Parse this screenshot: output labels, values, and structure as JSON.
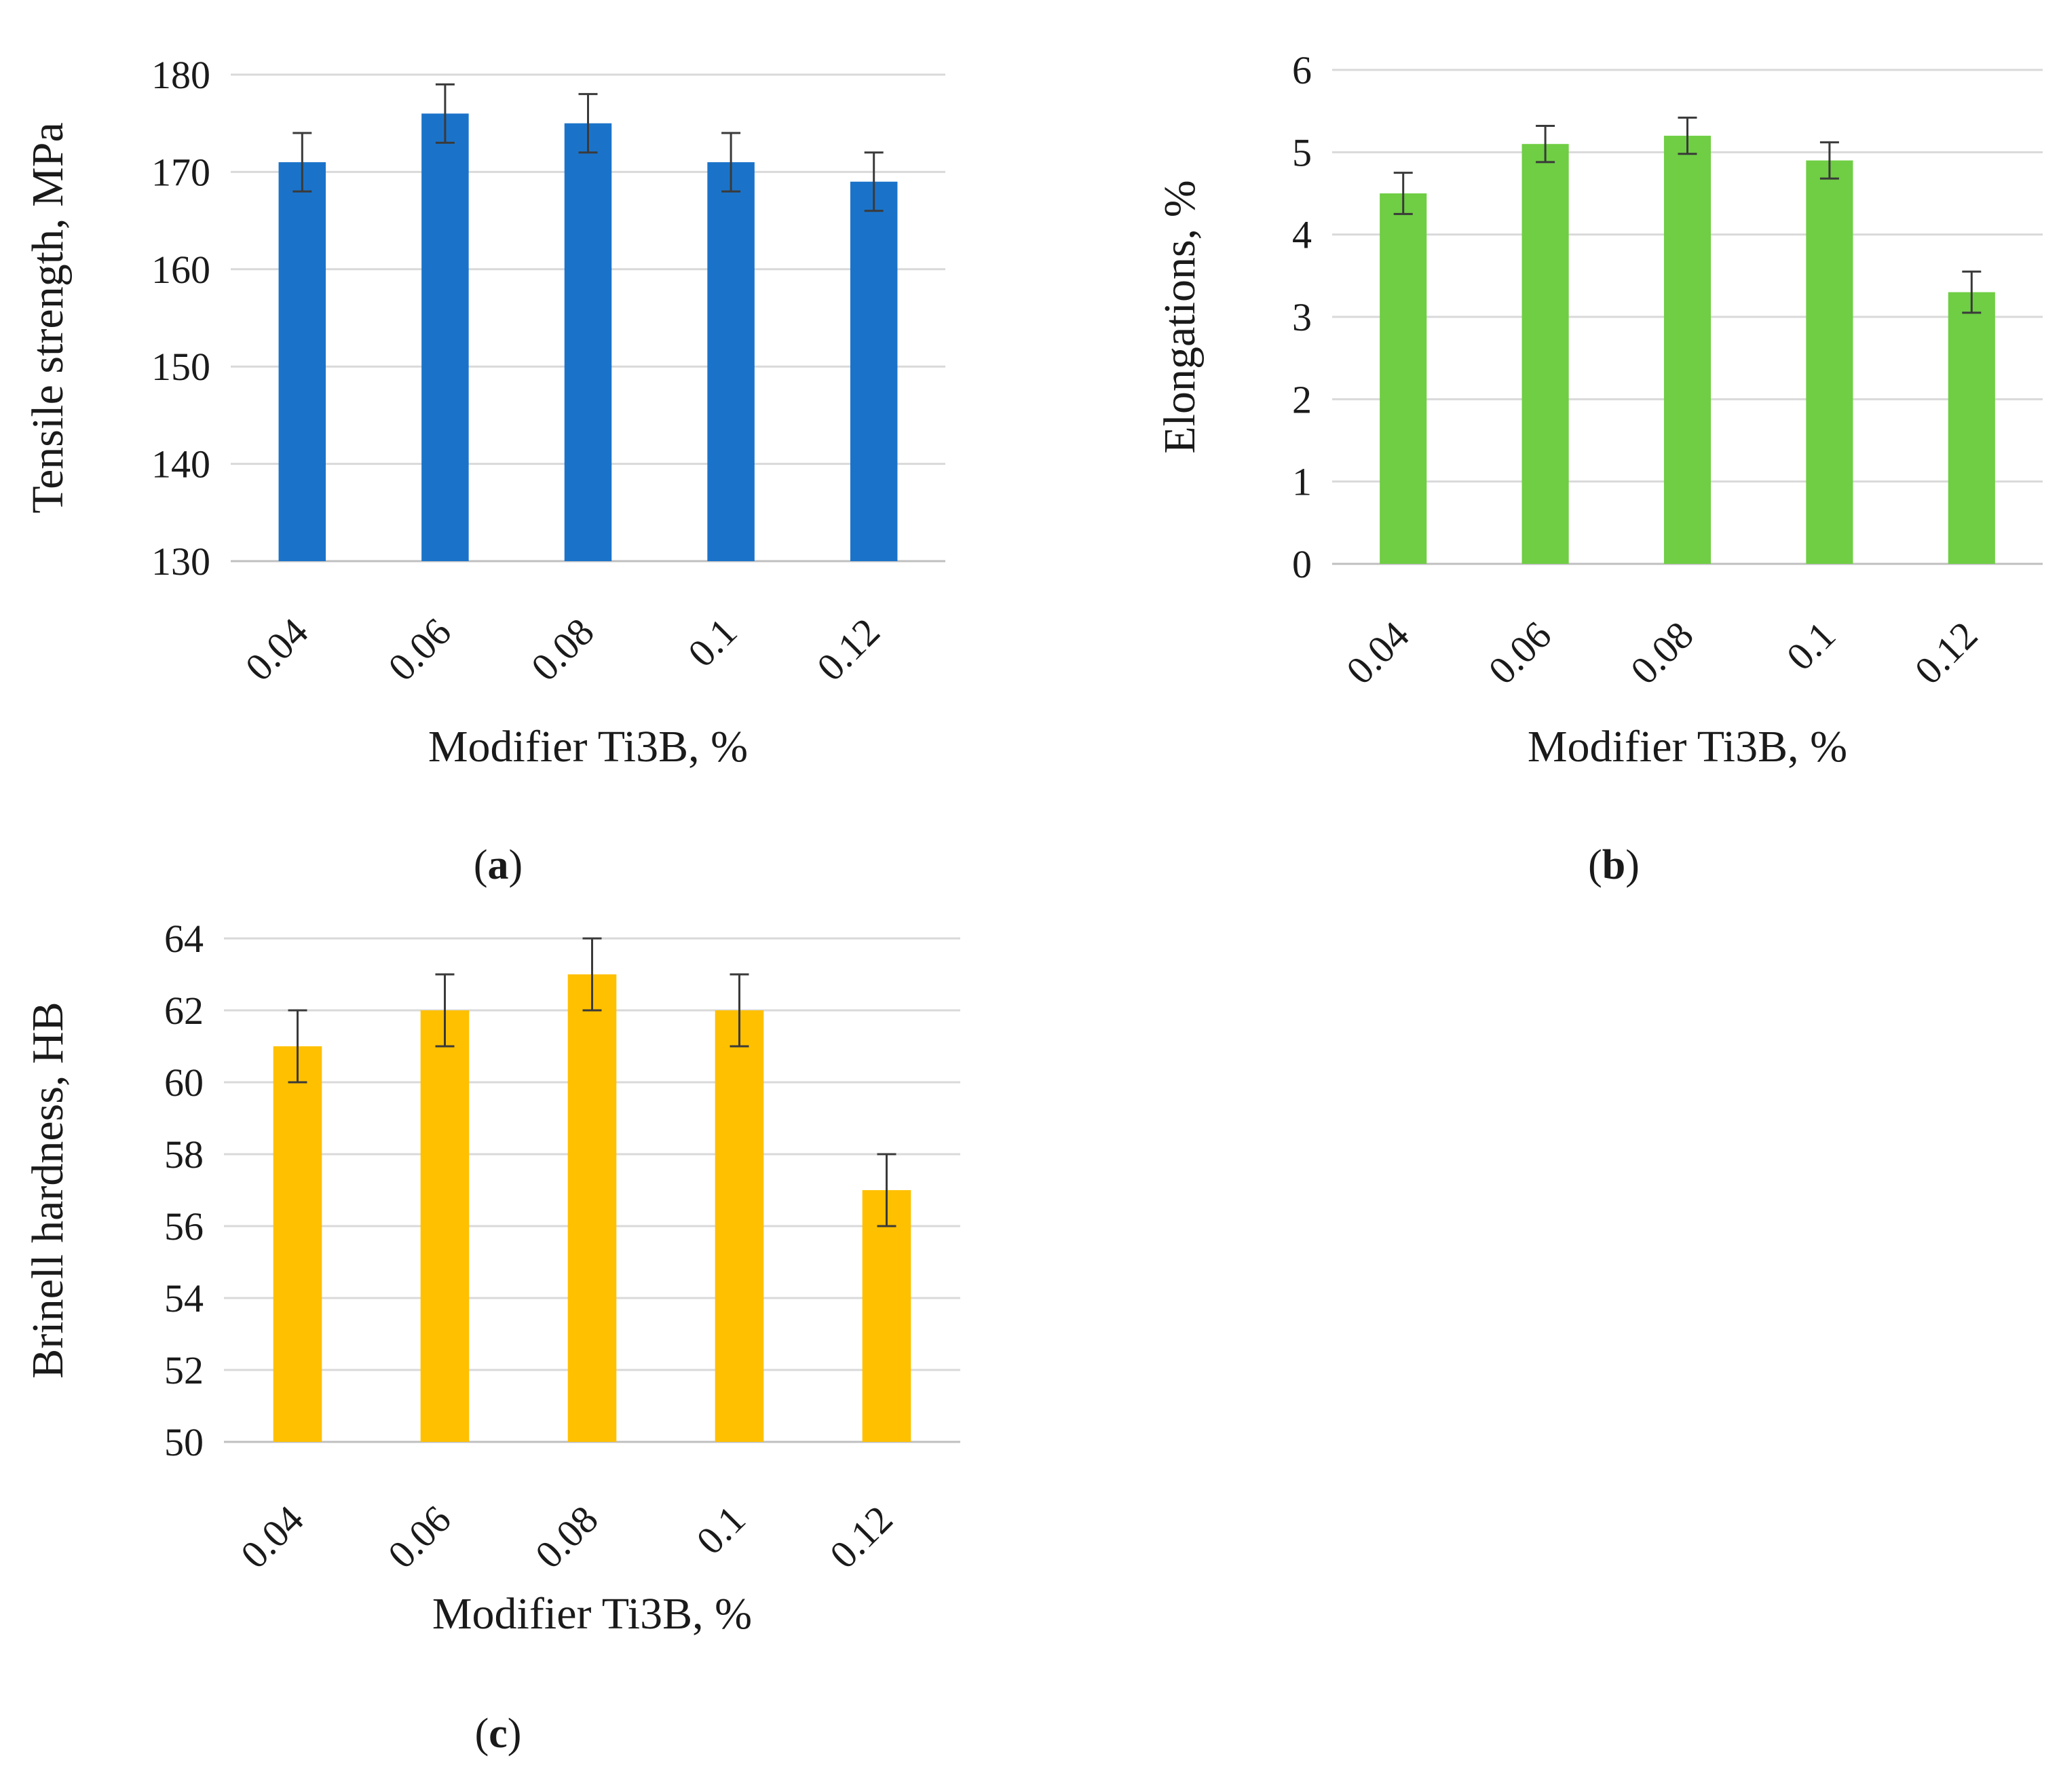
{
  "chart_data": [
    {
      "type": "bar",
      "panel_label": "a",
      "title": "",
      "xlabel": "Modifier Ti3B, %",
      "ylabel": "Tensile strength, MPa",
      "categories": [
        "0.04",
        "0.06",
        "0.08",
        "0.1",
        "0.12"
      ],
      "values": [
        171,
        176,
        175,
        171,
        169
      ],
      "errors": [
        3,
        3,
        3,
        3,
        3
      ],
      "ylim": [
        130,
        180
      ],
      "yticks": [
        130,
        140,
        150,
        160,
        170,
        180
      ],
      "grid": true,
      "color": "#1b73c9"
    },
    {
      "type": "bar",
      "panel_label": "b",
      "title": "",
      "xlabel": "Modifier Ti3B, %",
      "ylabel": "Elongations, %",
      "categories": [
        "0.04",
        "0.06",
        "0.08",
        "0.1",
        "0.12"
      ],
      "values": [
        4.5,
        5.1,
        5.2,
        4.9,
        3.3
      ],
      "errors": [
        0.25,
        0.22,
        0.22,
        0.22,
        0.25
      ],
      "ylim": [
        0,
        6
      ],
      "yticks": [
        0,
        1,
        2,
        3,
        4,
        5,
        6
      ],
      "grid": true,
      "color": "#6fce43"
    },
    {
      "type": "bar",
      "panel_label": "c",
      "title": "",
      "xlabel": "Modifier Ti3B, %",
      "ylabel": "Brinell hardness, HB",
      "categories": [
        "0.04",
        "0.06",
        "0.08",
        "0.1",
        "0.12"
      ],
      "values": [
        61,
        62,
        63,
        62,
        57
      ],
      "errors": [
        1,
        1,
        1,
        1,
        1
      ],
      "ylim": [
        50,
        64
      ],
      "yticks": [
        50,
        52,
        54,
        56,
        58,
        60,
        62,
        64
      ],
      "grid": true,
      "color": "#ffc000"
    }
  ]
}
